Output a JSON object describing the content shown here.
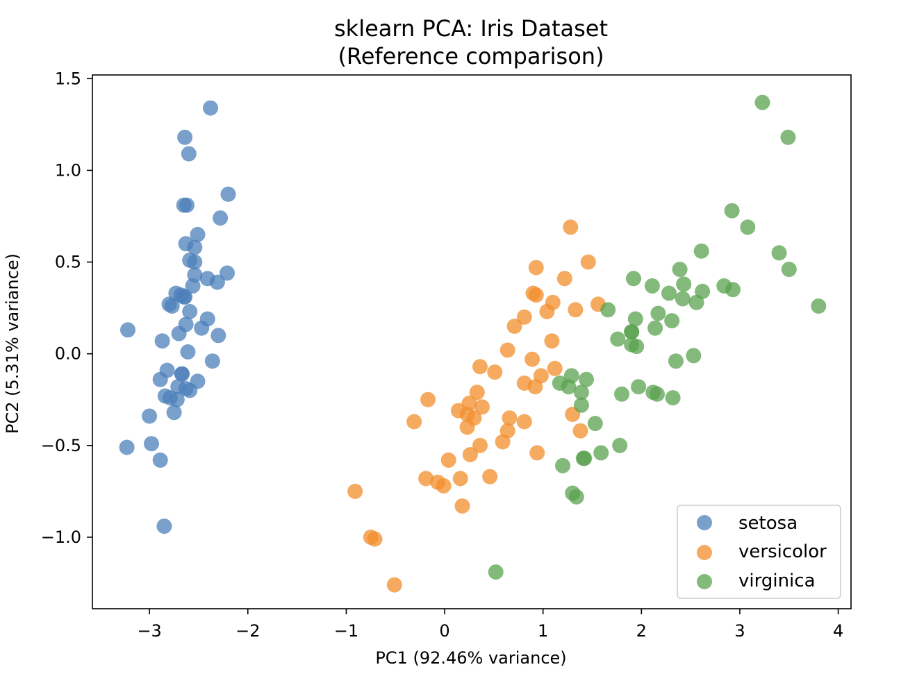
{
  "chart_data": {
    "type": "scatter",
    "title": "sklearn PCA: Iris Dataset",
    "subtitle": "(Reference comparison)",
    "xlabel": "PC1 (92.46% variance)",
    "ylabel": "PC2 (5.31% variance)",
    "xlim": [
      -3.58,
      4.13
    ],
    "ylim": [
      -1.39,
      1.52
    ],
    "xticks": [
      -3,
      -2,
      -1,
      0,
      1,
      2,
      3,
      4
    ],
    "xtick_labels": [
      "−3",
      "−2",
      "−1",
      "0",
      "1",
      "2",
      "3",
      "4"
    ],
    "yticks": [
      -1.0,
      -0.5,
      0.0,
      0.5,
      1.0,
      1.5
    ],
    "ytick_labels": [
      "−1.0",
      "−0.5",
      "0.0",
      "0.5",
      "1.0",
      "1.5"
    ],
    "grid": false,
    "legend_position": "bottom-right",
    "series": [
      {
        "name": "setosa",
        "color": "#4c7fba",
        "points": [
          [
            -2.68,
            0.32
          ],
          [
            -2.71,
            -0.18
          ],
          [
            -2.89,
            -0.14
          ],
          [
            -2.75,
            -0.32
          ],
          [
            -2.73,
            0.33
          ],
          [
            -2.28,
            0.74
          ],
          [
            -2.82,
            -0.09
          ],
          [
            -2.63,
            0.16
          ],
          [
            -2.89,
            -0.58
          ],
          [
            -2.67,
            -0.11
          ],
          [
            -2.51,
            0.65
          ],
          [
            -2.61,
            0.01
          ],
          [
            -2.79,
            -0.24
          ],
          [
            -3.23,
            -0.51
          ],
          [
            -2.64,
            1.18
          ],
          [
            -2.38,
            1.34
          ],
          [
            -2.62,
            0.81
          ],
          [
            -2.65,
            0.31
          ],
          [
            -2.2,
            0.87
          ],
          [
            -2.59,
            0.51
          ],
          [
            -2.31,
            0.39
          ],
          [
            -2.54,
            0.43
          ],
          [
            -3.22,
            0.13
          ],
          [
            -2.3,
            0.1
          ],
          [
            -2.36,
            -0.04
          ],
          [
            -2.51,
            -0.15
          ],
          [
            -2.47,
            0.14
          ],
          [
            -2.56,
            0.37
          ],
          [
            -2.64,
            0.31
          ],
          [
            -2.63,
            -0.19
          ],
          [
            -2.59,
            -0.2
          ],
          [
            -2.41,
            0.41
          ],
          [
            -2.65,
            0.81
          ],
          [
            -2.6,
            1.09
          ],
          [
            -2.67,
            -0.11
          ],
          [
            -2.87,
            0.07
          ],
          [
            -2.63,
            0.6
          ],
          [
            -2.8,
            0.27
          ],
          [
            -2.98,
            -0.49
          ],
          [
            -2.59,
            0.23
          ],
          [
            -2.77,
            0.26
          ],
          [
            -2.85,
            -0.94
          ],
          [
            -3.0,
            -0.34
          ],
          [
            -2.41,
            0.19
          ],
          [
            -2.21,
            0.44
          ],
          [
            -2.72,
            -0.25
          ],
          [
            -2.54,
            0.5
          ],
          [
            -2.84,
            -0.23
          ],
          [
            -2.54,
            0.58
          ],
          [
            -2.7,
            0.11
          ]
        ]
      },
      {
        "name": "versicolor",
        "color": "#f28e2b",
        "points": [
          [
            1.28,
            0.69
          ],
          [
            0.93,
            0.32
          ],
          [
            1.46,
            0.5
          ],
          [
            0.18,
            -0.83
          ],
          [
            1.09,
            0.07
          ],
          [
            0.64,
            -0.42
          ],
          [
            1.1,
            0.28
          ],
          [
            -0.75,
            -1.0
          ],
          [
            1.04,
            0.23
          ],
          [
            -0.01,
            -0.72
          ],
          [
            -0.51,
            -1.26
          ],
          [
            0.51,
            -0.1
          ],
          [
            0.26,
            -0.55
          ],
          [
            0.98,
            -0.12
          ],
          [
            -0.17,
            -0.25
          ],
          [
            0.93,
            0.47
          ],
          [
            0.66,
            -0.35
          ],
          [
            0.23,
            -0.33
          ],
          [
            0.94,
            -0.54
          ],
          [
            0.04,
            -0.58
          ],
          [
            1.12,
            -0.08
          ],
          [
            0.36,
            -0.07
          ],
          [
            1.3,
            -0.33
          ],
          [
            0.92,
            -0.18
          ],
          [
            0.71,
            0.15
          ],
          [
            0.9,
            0.33
          ],
          [
            1.33,
            0.24
          ],
          [
            1.56,
            0.27
          ],
          [
            0.81,
            -0.16
          ],
          [
            -0.31,
            -0.37
          ],
          [
            -0.07,
            -0.7
          ],
          [
            -0.19,
            -0.68
          ],
          [
            0.14,
            -0.31
          ],
          [
            1.38,
            -0.42
          ],
          [
            0.59,
            -0.48
          ],
          [
            0.81,
            0.2
          ],
          [
            1.22,
            0.41
          ],
          [
            0.81,
            -0.37
          ],
          [
            0.25,
            -0.27
          ],
          [
            0.16,
            -0.68
          ],
          [
            0.46,
            -0.67
          ],
          [
            0.89,
            -0.03
          ],
          [
            0.23,
            -0.4
          ],
          [
            -0.71,
            -1.01
          ],
          [
            0.36,
            -0.5
          ],
          [
            0.33,
            -0.21
          ],
          [
            0.38,
            -0.29
          ],
          [
            0.64,
            0.02
          ],
          [
            -0.91,
            -0.75
          ],
          [
            0.3,
            -0.35
          ]
        ]
      },
      {
        "name": "virginica",
        "color": "#59a14f",
        "points": [
          [
            2.53,
            -0.01
          ],
          [
            1.41,
            -0.57
          ],
          [
            2.62,
            0.34
          ],
          [
            1.97,
            -0.18
          ],
          [
            2.35,
            -0.04
          ],
          [
            3.4,
            0.55
          ],
          [
            0.52,
            -1.19
          ],
          [
            2.93,
            0.35
          ],
          [
            2.32,
            -0.24
          ],
          [
            2.92,
            0.78
          ],
          [
            1.66,
            0.24
          ],
          [
            1.8,
            -0.22
          ],
          [
            2.17,
            0.22
          ],
          [
            1.34,
            -0.78
          ],
          [
            1.59,
            -0.54
          ],
          [
            1.9,
            0.12
          ],
          [
            1.95,
            0.04
          ],
          [
            3.49,
            1.18
          ],
          [
            3.8,
            0.26
          ],
          [
            1.3,
            -0.76
          ],
          [
            2.43,
            0.38
          ],
          [
            1.2,
            -0.61
          ],
          [
            3.5,
            0.46
          ],
          [
            1.39,
            -0.21
          ],
          [
            2.28,
            0.33
          ],
          [
            2.61,
            0.56
          ],
          [
            1.26,
            -0.18
          ],
          [
            1.29,
            -0.12
          ],
          [
            2.12,
            -0.21
          ],
          [
            2.39,
            0.46
          ],
          [
            2.84,
            0.37
          ],
          [
            3.23,
            1.37
          ],
          [
            2.16,
            -0.22
          ],
          [
            1.44,
            -0.14
          ],
          [
            1.78,
            -0.5
          ],
          [
            3.08,
            0.69
          ],
          [
            2.14,
            0.14
          ],
          [
            1.9,
            0.05
          ],
          [
            1.17,
            -0.16
          ],
          [
            2.11,
            0.37
          ],
          [
            2.31,
            0.18
          ],
          [
            1.92,
            0.41
          ],
          [
            1.42,
            -0.57
          ],
          [
            2.56,
            0.28
          ],
          [
            2.42,
            0.3
          ],
          [
            1.94,
            0.19
          ],
          [
            1.53,
            -0.38
          ],
          [
            1.76,
            0.08
          ],
          [
            1.9,
            0.12
          ],
          [
            1.39,
            -0.28
          ]
        ]
      }
    ]
  }
}
